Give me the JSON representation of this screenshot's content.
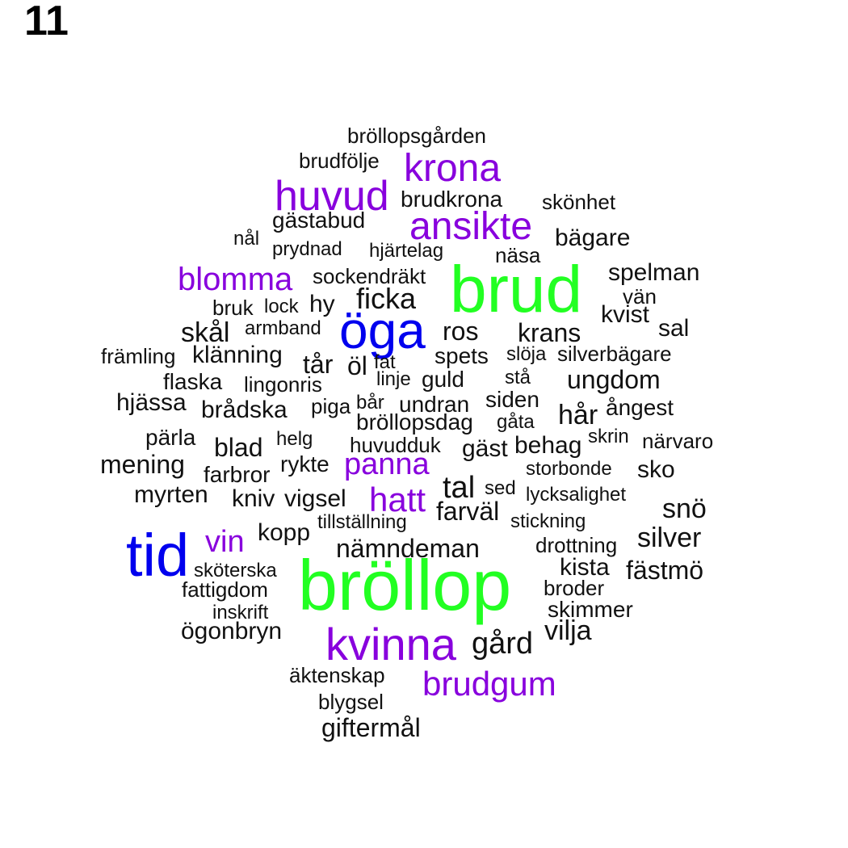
{
  "page_number": "11",
  "colors": {
    "green": "#22ff22",
    "blue": "#0000ee",
    "purple": "#8800dd",
    "black": "#111111"
  },
  "words": [
    {
      "text": "bröllopsgården",
      "color": "black"
    },
    {
      "text": "brudfölje",
      "color": "black"
    },
    {
      "text": "krona",
      "color": "purple"
    },
    {
      "text": "huvud",
      "color": "purple"
    },
    {
      "text": "brudkrona",
      "color": "black"
    },
    {
      "text": "skönhet",
      "color": "black"
    },
    {
      "text": "gästabud",
      "color": "black"
    },
    {
      "text": "ansikte",
      "color": "purple"
    },
    {
      "text": "nål",
      "color": "black"
    },
    {
      "text": "bägare",
      "color": "black"
    },
    {
      "text": "prydnad",
      "color": "black"
    },
    {
      "text": "hjärtelag",
      "color": "black"
    },
    {
      "text": "näsa",
      "color": "black"
    },
    {
      "text": "spelman",
      "color": "black"
    },
    {
      "text": "blomma",
      "color": "purple"
    },
    {
      "text": "sockendräkt",
      "color": "black"
    },
    {
      "text": "brud",
      "color": "green"
    },
    {
      "text": "vän",
      "color": "black"
    },
    {
      "text": "ficka",
      "color": "black"
    },
    {
      "text": "bruk",
      "color": "black"
    },
    {
      "text": "lock",
      "color": "black"
    },
    {
      "text": "hy",
      "color": "black"
    },
    {
      "text": "kvist",
      "color": "black"
    },
    {
      "text": "öga",
      "color": "blue"
    },
    {
      "text": "armband",
      "color": "black"
    },
    {
      "text": "skål",
      "color": "black"
    },
    {
      "text": "ros",
      "color": "black"
    },
    {
      "text": "krans",
      "color": "black"
    },
    {
      "text": "sal",
      "color": "black"
    },
    {
      "text": "främling",
      "color": "black"
    },
    {
      "text": "klänning",
      "color": "black"
    },
    {
      "text": "spets",
      "color": "black"
    },
    {
      "text": "slöja",
      "color": "black"
    },
    {
      "text": "silverbägare",
      "color": "black"
    },
    {
      "text": "tår",
      "color": "black"
    },
    {
      "text": "öl",
      "color": "black"
    },
    {
      "text": "fat",
      "color": "black"
    },
    {
      "text": "flaska",
      "color": "black"
    },
    {
      "text": "lingonris",
      "color": "black"
    },
    {
      "text": "linje",
      "color": "black"
    },
    {
      "text": "guld",
      "color": "black"
    },
    {
      "text": "stå",
      "color": "black"
    },
    {
      "text": "ungdom",
      "color": "black"
    },
    {
      "text": "hjässa",
      "color": "black"
    },
    {
      "text": "siden",
      "color": "black"
    },
    {
      "text": "brådska",
      "color": "black"
    },
    {
      "text": "piga",
      "color": "black"
    },
    {
      "text": "bår",
      "color": "black"
    },
    {
      "text": "undran",
      "color": "black"
    },
    {
      "text": "ångest",
      "color": "black"
    },
    {
      "text": "hår",
      "color": "black"
    },
    {
      "text": "bröllopsdag",
      "color": "black"
    },
    {
      "text": "gåta",
      "color": "black"
    },
    {
      "text": "pärla",
      "color": "black"
    },
    {
      "text": "skrin",
      "color": "black"
    },
    {
      "text": "blad",
      "color": "black"
    },
    {
      "text": "helg",
      "color": "black"
    },
    {
      "text": "huvudduk",
      "color": "black"
    },
    {
      "text": "gäst",
      "color": "black"
    },
    {
      "text": "behag",
      "color": "black"
    },
    {
      "text": "närvaro",
      "color": "black"
    },
    {
      "text": "mening",
      "color": "black"
    },
    {
      "text": "panna",
      "color": "purple"
    },
    {
      "text": "rykte",
      "color": "black"
    },
    {
      "text": "farbror",
      "color": "black"
    },
    {
      "text": "storbonde",
      "color": "black"
    },
    {
      "text": "sko",
      "color": "black"
    },
    {
      "text": "tal",
      "color": "black"
    },
    {
      "text": "sed",
      "color": "black"
    },
    {
      "text": "myrten",
      "color": "black"
    },
    {
      "text": "kniv",
      "color": "black"
    },
    {
      "text": "vigsel",
      "color": "black"
    },
    {
      "text": "hatt",
      "color": "purple"
    },
    {
      "text": "lycksalighet",
      "color": "black"
    },
    {
      "text": "snö",
      "color": "black"
    },
    {
      "text": "farväl",
      "color": "black"
    },
    {
      "text": "tillställning",
      "color": "black"
    },
    {
      "text": "stickning",
      "color": "black"
    },
    {
      "text": "tid",
      "color": "blue"
    },
    {
      "text": "vin",
      "color": "purple"
    },
    {
      "text": "kopp",
      "color": "black"
    },
    {
      "text": "silver",
      "color": "black"
    },
    {
      "text": "nämndeman",
      "color": "black"
    },
    {
      "text": "drottning",
      "color": "black"
    },
    {
      "text": "kista",
      "color": "black"
    },
    {
      "text": "sköterska",
      "color": "black"
    },
    {
      "text": "fästmö",
      "color": "black"
    },
    {
      "text": "bröllop",
      "color": "green"
    },
    {
      "text": "fattigdom",
      "color": "black"
    },
    {
      "text": "broder",
      "color": "black"
    },
    {
      "text": "inskrift",
      "color": "black"
    },
    {
      "text": "skimmer",
      "color": "black"
    },
    {
      "text": "ögonbryn",
      "color": "black"
    },
    {
      "text": "vilja",
      "color": "black"
    },
    {
      "text": "gård",
      "color": "black"
    },
    {
      "text": "kvinna",
      "color": "purple"
    },
    {
      "text": "äktenskap",
      "color": "black"
    },
    {
      "text": "brudgum",
      "color": "purple"
    },
    {
      "text": "blygsel",
      "color": "black"
    },
    {
      "text": "giftermål",
      "color": "black"
    }
  ]
}
